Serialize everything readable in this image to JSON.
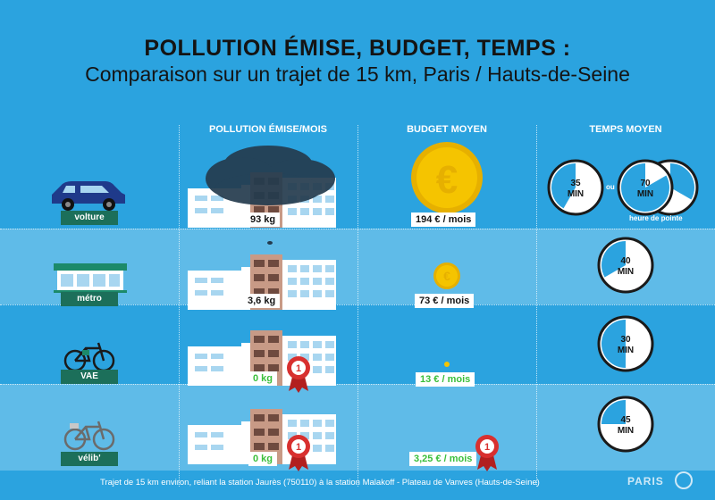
{
  "title": "POLLUTION ÉMISE, BUDGET, TEMPS :",
  "subtitle": "Comparaison sur un trajet de 15 km, Paris / Hauts-de-Seine",
  "columns": {
    "pollution": "POLLUTION ÉMISE/MOIS",
    "budget": "BUDGET MOYEN",
    "time": "TEMPS MOYEN"
  },
  "rows": [
    {
      "mode": "volture",
      "pollution": "93 kg",
      "budget": "194 € / mois",
      "icon": "car-icon"
    },
    {
      "mode": "métro",
      "pollution": "3,6 kg",
      "budget": "73 € / mois",
      "icon": "metro-icon"
    },
    {
      "mode": "VAE",
      "pollution": "0 kg",
      "budget": "13 € / mois",
      "icon": "ebike-icon"
    },
    {
      "mode": "vélib'",
      "pollution": "0 kg",
      "budget": "3,25 € / mois",
      "icon": "bike-icon"
    }
  ],
  "clocks": {
    "car_normal_value": "35",
    "car_peak_value": "70",
    "min_label": "MIN",
    "or_label": "ou",
    "peak_label": "heure de pointe",
    "metro_value": "40",
    "vae_value": "30",
    "velib_value": "45"
  },
  "clock_fractions": {
    "car_normal": 0.583,
    "car_peak": 0.167,
    "metro": 0.667,
    "vae": 0.5,
    "velib": 0.75
  },
  "footer": "Trajet de 15 km environ, reliant la station Jaurès (750110) à la station Malakoff - Plateau de Vanves (Hauts-de-Seine)",
  "brand": "PARIS",
  "colors": {
    "background": "#2ba3df",
    "alt_row": "#5fbbe8",
    "label_bg": "#1c6f5a",
    "green": "#3bbf3b",
    "gold": "#f5c400",
    "badge": "#d8302f",
    "cloud": "#243b4e"
  }
}
